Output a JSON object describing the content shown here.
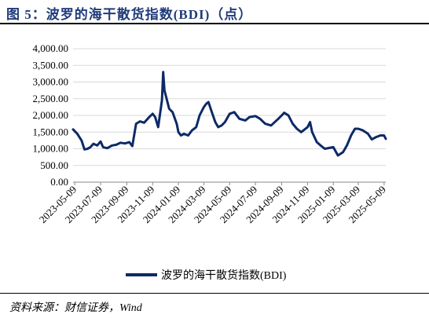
{
  "figure": {
    "title": "图 5：波罗的海干散货指数(BDI)（点）",
    "source": "资料来源：财信证券，Wind"
  },
  "colors": {
    "series": "#0d2a66",
    "title": "#1f3b7a",
    "grid": "#d9d9d9"
  },
  "chart_data": {
    "type": "line",
    "title": "",
    "xlabel": "",
    "ylabel": "",
    "ylim": [
      0,
      4000
    ],
    "yticks": [
      "0.00",
      "500.00",
      "1,000.00",
      "1,500.00",
      "2,000.00",
      "2,500.00",
      "3,000.00",
      "3,500.00",
      "4,000.00"
    ],
    "ytick_values": [
      0,
      500,
      1000,
      1500,
      2000,
      2500,
      3000,
      3500,
      4000
    ],
    "xlim": [
      "2023-05-05",
      "2025-05-13"
    ],
    "xticks": [
      "2023-05-09",
      "2023-07-09",
      "2023-09-09",
      "2023-11-09",
      "2024-01-09",
      "2024-03-09",
      "2024-05-09",
      "2024-07-09",
      "2024-09-09",
      "2024-11-09",
      "2025-01-09",
      "2025-03-09",
      "2025-05-09"
    ],
    "grid": true,
    "legend": "bottom-center",
    "series": [
      {
        "name": "波罗的海干散货指数(BDI)",
        "points": [
          [
            "2023-05-05",
            1580
          ],
          [
            "2023-05-15",
            1450
          ],
          [
            "2023-05-25",
            1250
          ],
          [
            "2023-06-01",
            980
          ],
          [
            "2023-06-08",
            1000
          ],
          [
            "2023-06-15",
            1050
          ],
          [
            "2023-06-22",
            1150
          ],
          [
            "2023-07-01",
            1100
          ],
          [
            "2023-07-09",
            1220
          ],
          [
            "2023-07-15",
            1050
          ],
          [
            "2023-07-25",
            1020
          ],
          [
            "2023-08-05",
            1100
          ],
          [
            "2023-08-15",
            1120
          ],
          [
            "2023-08-25",
            1180
          ],
          [
            "2023-09-05",
            1160
          ],
          [
            "2023-09-15",
            1200
          ],
          [
            "2023-09-22",
            1080
          ],
          [
            "2023-10-01",
            1750
          ],
          [
            "2023-10-10",
            1820
          ],
          [
            "2023-10-20",
            1780
          ],
          [
            "2023-11-01",
            1950
          ],
          [
            "2023-11-09",
            2050
          ],
          [
            "2023-11-15",
            1950
          ],
          [
            "2023-11-22",
            1650
          ],
          [
            "2023-12-01",
            2450
          ],
          [
            "2023-12-04",
            3300
          ],
          [
            "2023-12-07",
            2750
          ],
          [
            "2023-12-11",
            2550
          ],
          [
            "2023-12-18",
            2200
          ],
          [
            "2023-12-26",
            2100
          ],
          [
            "2024-01-05",
            1750
          ],
          [
            "2024-01-09",
            1500
          ],
          [
            "2024-01-15",
            1400
          ],
          [
            "2024-01-22",
            1450
          ],
          [
            "2024-02-01",
            1400
          ],
          [
            "2024-02-10",
            1550
          ],
          [
            "2024-02-20",
            1650
          ],
          [
            "2024-02-28",
            2000
          ],
          [
            "2024-03-09",
            2250
          ],
          [
            "2024-03-15",
            2350
          ],
          [
            "2024-03-20",
            2400
          ],
          [
            "2024-03-28",
            2100
          ],
          [
            "2024-04-05",
            1800
          ],
          [
            "2024-04-12",
            1650
          ],
          [
            "2024-04-20",
            1700
          ],
          [
            "2024-04-28",
            1800
          ],
          [
            "2024-05-09",
            2050
          ],
          [
            "2024-05-20",
            2100
          ],
          [
            "2024-06-01",
            1900
          ],
          [
            "2024-06-15",
            1850
          ],
          [
            "2024-06-25",
            1950
          ],
          [
            "2024-07-09",
            1980
          ],
          [
            "2024-07-20",
            1900
          ],
          [
            "2024-08-01",
            1750
          ],
          [
            "2024-08-15",
            1700
          ],
          [
            "2024-09-01",
            1900
          ],
          [
            "2024-09-09",
            2000
          ],
          [
            "2024-09-15",
            2080
          ],
          [
            "2024-09-25",
            2000
          ],
          [
            "2024-10-05",
            1750
          ],
          [
            "2024-10-15",
            1600
          ],
          [
            "2024-10-25",
            1500
          ],
          [
            "2024-11-09",
            1650
          ],
          [
            "2024-11-15",
            1800
          ],
          [
            "2024-11-20",
            1500
          ],
          [
            "2024-12-01",
            1200
          ],
          [
            "2024-12-10",
            1100
          ],
          [
            "2024-12-20",
            1000
          ],
          [
            "2025-01-09",
            1050
          ],
          [
            "2025-01-20",
            800
          ],
          [
            "2025-02-01",
            900
          ],
          [
            "2025-02-10",
            1100
          ],
          [
            "2025-02-20",
            1400
          ],
          [
            "2025-03-01",
            1600
          ],
          [
            "2025-03-09",
            1600
          ],
          [
            "2025-03-20",
            1550
          ],
          [
            "2025-04-01",
            1450
          ],
          [
            "2025-04-10",
            1280
          ],
          [
            "2025-04-20",
            1350
          ],
          [
            "2025-04-30",
            1400
          ],
          [
            "2025-05-09",
            1400
          ],
          [
            "2025-05-13",
            1300
          ]
        ]
      }
    ]
  }
}
